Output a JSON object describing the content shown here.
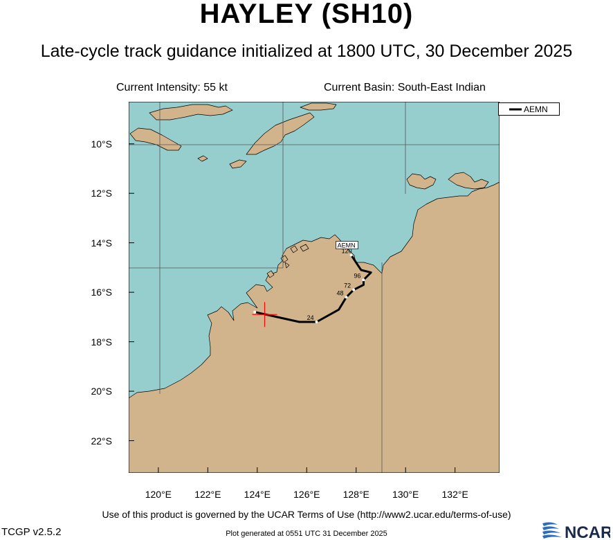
{
  "title": "HAYLEY (SH10)",
  "subtitle": "Late-cycle track guidance initialized at 1800 UTC, 30 December 2025",
  "current_intensity": "Current Intensity: 55 kt",
  "current_basin": "Current Basin: South-East Indian",
  "footer": {
    "terms": "Use of this product is governed by the UCAR Terms of Use (http://www2.ucar.edu/terms-of-use)",
    "version": "TCGP v2.5.2",
    "generated": "Plot generated at 0551 UTC   31 December 2025",
    "logo_text": "NCAR"
  },
  "colors": {
    "ocean": "#96cdcd",
    "land": "#d2b48c",
    "track": "#000000",
    "current_position_marker": "#ff0000",
    "gridlines": "#555555"
  },
  "map": {
    "lon_range": [
      118.8,
      133.8
    ],
    "lat_range": [
      -23.3,
      -8.3
    ],
    "lon_ticks": [
      120,
      122,
      124,
      126,
      128,
      130,
      132
    ],
    "lon_tick_labels": [
      "120°E",
      "122°E",
      "124°E",
      "126°E",
      "128°E",
      "130°E",
      "132°E"
    ],
    "lat_ticks": [
      -10,
      -12,
      -14,
      -16,
      -18,
      -20,
      -22
    ],
    "lat_tick_labels": [
      "10°S",
      "12°S",
      "14°S",
      "16°S",
      "18°S",
      "20°S",
      "22°S"
    ],
    "legend_placement": "top-right"
  },
  "current_position": {
    "lon": 124.3,
    "lat": -16.9
  },
  "tracks": [
    {
      "name": "AEMN",
      "label_text": "AEMN",
      "points": [
        {
          "lon": 123.9,
          "lat": -16.8,
          "hour": "0",
          "shown_label": ""
        },
        {
          "lon": 125.7,
          "lat": -17.2,
          "hour": "",
          "shown_label": ""
        },
        {
          "lon": 126.4,
          "lat": -17.2,
          "hour": "24",
          "shown_label": "24"
        },
        {
          "lon": 127.3,
          "lat": -16.7,
          "hour": "",
          "shown_label": ""
        },
        {
          "lon": 127.6,
          "lat": -16.2,
          "hour": "48",
          "shown_label": "48"
        },
        {
          "lon": 127.9,
          "lat": -15.9,
          "hour": "72",
          "shown_label": "72"
        },
        {
          "lon": 128.3,
          "lat": -15.7,
          "hour": "",
          "shown_label": ""
        },
        {
          "lon": 128.3,
          "lat": -15.5,
          "hour": "96",
          "shown_label": "96"
        },
        {
          "lon": 128.6,
          "lat": -15.2,
          "hour": "",
          "shown_label": ""
        },
        {
          "lon": 128.2,
          "lat": -15.1,
          "hour": "",
          "shown_label": ""
        },
        {
          "lon": 127.8,
          "lat": -14.5,
          "hour": "120",
          "shown_label": "120"
        }
      ]
    }
  ]
}
